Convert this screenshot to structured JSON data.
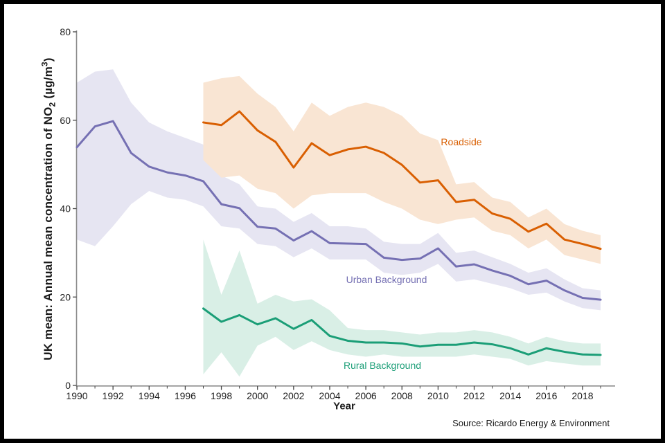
{
  "labels": {
    "y_prefix": "UK mean: Annual mean concentration of NO",
    "y_sub": "2",
    "y_mid": " (µg/m",
    "y_sup": "3",
    "y_suffix": ")"
  },
  "chart_data": {
    "type": "line",
    "title": "",
    "xlabel": "Year",
    "ylabel": "UK mean: Annual mean concentration of NO2 (µg/m3)",
    "source": "Source: Ricardo Energy & Environment",
    "xlim": [
      1990,
      2019
    ],
    "ylim": [
      0,
      80
    ],
    "grid": false,
    "legend_position": "inline-labels",
    "axis_color": "#8a8a8a",
    "tick_color": "#444444",
    "x_ticks": [
      1990,
      1992,
      1994,
      1996,
      1998,
      2000,
      2002,
      2004,
      2006,
      2008,
      2010,
      2012,
      2014,
      2016,
      2018
    ],
    "x_minor_ticks": [
      1991,
      1993,
      1995,
      1997,
      1999,
      2001,
      2003,
      2005,
      2007,
      2009,
      2011,
      2013,
      2015,
      2017,
      2019
    ],
    "y_ticks": [
      0,
      20,
      40,
      60,
      80
    ],
    "band_note": "shaded areas are uncertainty ranges around each mean line",
    "series": [
      {
        "name": "Roadside",
        "color": "#d95f02",
        "band_color": "#f9e5d3",
        "x": [
          1997,
          1998,
          1999,
          2000,
          2001,
          2002,
          2003,
          2004,
          2005,
          2006,
          2007,
          2008,
          2009,
          2010,
          2011,
          2012,
          2013,
          2014,
          2015,
          2016,
          2017,
          2018,
          2019
        ],
        "values": [
          59.5,
          58.9,
          62.0,
          57.7,
          55.1,
          49.3,
          54.8,
          52.1,
          53.4,
          54.0,
          52.6,
          49.9,
          45.9,
          46.4,
          41.5,
          42.0,
          38.9,
          37.7,
          34.8,
          36.6,
          33.0,
          32.0,
          30.9
        ],
        "lower": [
          51,
          47,
          47.5,
          44.5,
          43.5,
          40,
          43,
          43.5,
          43.5,
          43.5,
          41.5,
          40,
          37.5,
          36.5,
          37.5,
          38,
          35,
          34,
          31,
          33,
          29.5,
          28.5,
          27.5
        ],
        "upper": [
          68.5,
          69.5,
          70,
          66,
          63,
          57.5,
          64,
          61,
          63,
          64,
          63,
          61,
          57,
          55.5,
          45.5,
          46,
          42.5,
          41.5,
          38,
          40,
          36.5,
          35,
          34
        ]
      },
      {
        "name": "Urban Background",
        "color": "#7570b3",
        "band_color": "#e6e5f2",
        "x": [
          1990,
          1991,
          1992,
          1993,
          1994,
          1995,
          1996,
          1997,
          1998,
          1999,
          2000,
          2001,
          2002,
          2003,
          2004,
          2005,
          2006,
          2007,
          2008,
          2009,
          2010,
          2011,
          2012,
          2013,
          2014,
          2015,
          2016,
          2017,
          2018,
          2019
        ],
        "values": [
          53.9,
          58.6,
          59.8,
          52.6,
          49.5,
          48.2,
          47.5,
          46.2,
          41.0,
          40.1,
          35.9,
          35.5,
          32.8,
          34.9,
          32.2,
          32.1,
          32.0,
          28.9,
          28.4,
          28.7,
          31.0,
          26.9,
          27.4,
          26.0,
          24.8,
          22.9,
          23.7,
          21.5,
          19.8,
          19.4
        ],
        "lower": [
          33,
          31.5,
          36,
          41,
          44,
          42.5,
          42,
          40.5,
          36,
          35.5,
          32,
          31.5,
          29,
          31,
          28.5,
          28.5,
          28.5,
          25.5,
          25,
          25.5,
          27.5,
          23.5,
          24,
          23,
          22,
          20.5,
          21,
          19,
          17.5,
          17
        ],
        "upper": [
          68.5,
          71,
          71.5,
          64,
          59.5,
          57.5,
          56,
          54.5,
          47.5,
          45.5,
          40.5,
          40,
          37,
          39,
          36,
          36,
          35.5,
          32.5,
          32,
          32,
          34.5,
          30,
          30.5,
          29,
          27.5,
          25.5,
          26.5,
          24,
          22,
          21.5
        ]
      },
      {
        "name": "Rural Background",
        "color": "#1b9e77",
        "band_color": "#d9efe6",
        "x": [
          1997,
          1998,
          1999,
          2000,
          2001,
          2002,
          2003,
          2004,
          2005,
          2006,
          2007,
          2008,
          2009,
          2010,
          2011,
          2012,
          2013,
          2014,
          2015,
          2016,
          2017,
          2018,
          2019
        ],
        "values": [
          17.4,
          14.4,
          15.9,
          13.8,
          15.2,
          12.8,
          14.8,
          11.2,
          10.1,
          9.7,
          9.7,
          9.5,
          8.8,
          9.2,
          9.2,
          9.7,
          9.3,
          8.4,
          7.0,
          8.4,
          7.6,
          7.0,
          6.9
        ],
        "lower": [
          2.5,
          7.5,
          2,
          9,
          11,
          8,
          10,
          8,
          7,
          6.5,
          7,
          6.5,
          6.5,
          6.5,
          6.5,
          7,
          6.5,
          6,
          4.5,
          5.5,
          5,
          4.5,
          4.5
        ],
        "upper": [
          33,
          20.5,
          30.5,
          18.5,
          20.5,
          19,
          19.5,
          17,
          13,
          12.5,
          12.5,
          12,
          11.5,
          12,
          12,
          12.5,
          12,
          11,
          9.5,
          11,
          10,
          9.5,
          9.5
        ]
      }
    ]
  }
}
